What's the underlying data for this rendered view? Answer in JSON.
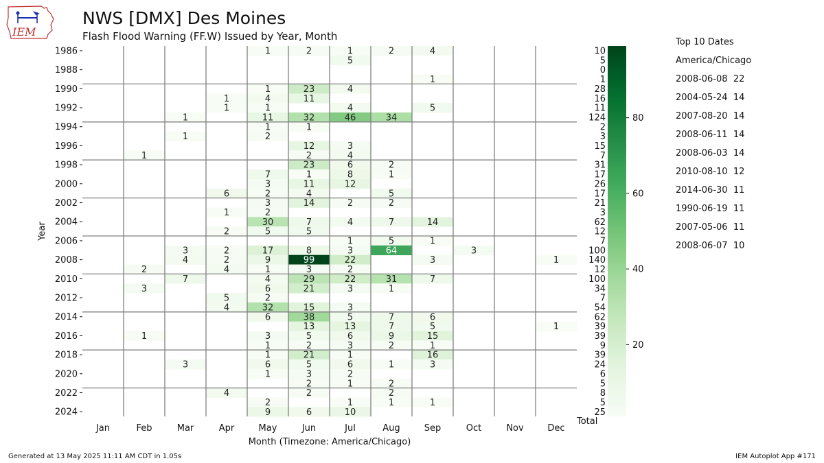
{
  "header": {
    "title": "NWS [DMX] Des Moines",
    "subtitle": "Flash Flood Warning (FF.W) Issued by Year, Month",
    "logo_text": "IEM"
  },
  "chart_data": {
    "type": "heatmap",
    "xlabel": "Month (Timezone: America/Chicago)",
    "ylabel": "Year",
    "x_categories": [
      "Jan",
      "Feb",
      "Mar",
      "Apr",
      "May",
      "Jun",
      "Jul",
      "Aug",
      "Sep",
      "Oct",
      "Nov",
      "Dec"
    ],
    "total_label": "Total",
    "years": [
      1986,
      1987,
      1988,
      1989,
      1990,
      1991,
      1992,
      1993,
      1994,
      1995,
      1996,
      1997,
      1998,
      1999,
      2000,
      2001,
      2002,
      2003,
      2004,
      2005,
      2006,
      2007,
      2008,
      2009,
      2010,
      2011,
      2012,
      2013,
      2014,
      2015,
      2016,
      2017,
      2018,
      2019,
      2020,
      2021,
      2022,
      2023,
      2024
    ],
    "year_tick_labels": [
      1986,
      1988,
      1990,
      1992,
      1994,
      1996,
      1998,
      2000,
      2002,
      2004,
      2006,
      2008,
      2010,
      2012,
      2014,
      2016,
      2018,
      2020,
      2022,
      2024
    ],
    "values": [
      [
        null,
        null,
        null,
        null,
        1,
        2,
        1,
        2,
        4,
        null,
        null,
        null
      ],
      [
        null,
        null,
        null,
        null,
        null,
        null,
        5,
        null,
        null,
        null,
        null,
        null
      ],
      [
        null,
        null,
        null,
        null,
        null,
        null,
        null,
        null,
        null,
        null,
        null,
        null
      ],
      [
        null,
        null,
        null,
        null,
        null,
        null,
        null,
        null,
        1,
        null,
        null,
        null
      ],
      [
        null,
        null,
        null,
        null,
        1,
        23,
        4,
        null,
        null,
        null,
        null,
        null
      ],
      [
        null,
        null,
        null,
        1,
        4,
        11,
        null,
        null,
        null,
        null,
        null,
        null
      ],
      [
        null,
        null,
        null,
        1,
        1,
        null,
        4,
        null,
        5,
        null,
        null,
        null
      ],
      [
        null,
        null,
        1,
        null,
        11,
        32,
        46,
        34,
        null,
        null,
        null,
        null
      ],
      [
        null,
        null,
        null,
        null,
        1,
        1,
        null,
        null,
        null,
        null,
        null,
        null
      ],
      [
        null,
        null,
        1,
        null,
        2,
        null,
        null,
        null,
        null,
        null,
        null,
        null
      ],
      [
        null,
        null,
        null,
        null,
        null,
        12,
        3,
        null,
        null,
        null,
        null,
        null
      ],
      [
        null,
        1,
        null,
        null,
        null,
        2,
        4,
        null,
        null,
        null,
        null,
        null
      ],
      [
        null,
        null,
        null,
        null,
        null,
        23,
        6,
        2,
        null,
        null,
        null,
        null
      ],
      [
        null,
        null,
        null,
        null,
        7,
        1,
        8,
        1,
        null,
        null,
        null,
        null
      ],
      [
        null,
        null,
        null,
        null,
        3,
        11,
        12,
        null,
        null,
        null,
        null,
        null
      ],
      [
        null,
        null,
        null,
        6,
        2,
        4,
        null,
        5,
        null,
        null,
        null,
        null
      ],
      [
        null,
        null,
        null,
        null,
        3,
        14,
        2,
        2,
        null,
        null,
        null,
        null
      ],
      [
        null,
        null,
        null,
        1,
        2,
        null,
        null,
        null,
        null,
        null,
        null,
        null
      ],
      [
        null,
        null,
        null,
        null,
        30,
        7,
        4,
        7,
        14,
        null,
        null,
        null
      ],
      [
        null,
        null,
        null,
        2,
        5,
        5,
        null,
        null,
        null,
        null,
        null,
        null
      ],
      [
        null,
        null,
        null,
        null,
        null,
        null,
        1,
        5,
        1,
        null,
        null,
        null
      ],
      [
        null,
        null,
        3,
        2,
        17,
        8,
        3,
        64,
        null,
        3,
        null,
        null
      ],
      [
        null,
        null,
        4,
        2,
        9,
        99,
        22,
        null,
        3,
        null,
        null,
        1
      ],
      [
        null,
        2,
        null,
        4,
        1,
        3,
        2,
        null,
        null,
        null,
        null,
        null
      ],
      [
        null,
        null,
        7,
        null,
        4,
        29,
        22,
        31,
        7,
        null,
        null,
        null
      ],
      [
        null,
        3,
        null,
        null,
        6,
        21,
        3,
        1,
        null,
        null,
        null,
        null
      ],
      [
        null,
        null,
        null,
        5,
        2,
        null,
        null,
        null,
        null,
        null,
        null,
        null
      ],
      [
        null,
        null,
        null,
        4,
        32,
        15,
        3,
        null,
        null,
        null,
        null,
        null
      ],
      [
        null,
        null,
        null,
        null,
        6,
        38,
        5,
        7,
        6,
        null,
        null,
        null
      ],
      [
        null,
        null,
        null,
        null,
        null,
        13,
        13,
        7,
        5,
        null,
        null,
        1
      ],
      [
        null,
        1,
        null,
        null,
        3,
        5,
        6,
        9,
        15,
        null,
        null,
        null
      ],
      [
        null,
        null,
        null,
        null,
        1,
        2,
        3,
        2,
        1,
        null,
        null,
        null
      ],
      [
        null,
        null,
        null,
        null,
        1,
        21,
        1,
        null,
        16,
        null,
        null,
        null
      ],
      [
        null,
        null,
        3,
        null,
        6,
        5,
        6,
        1,
        3,
        null,
        null,
        null
      ],
      [
        null,
        null,
        null,
        null,
        1,
        3,
        2,
        null,
        null,
        null,
        null,
        null
      ],
      [
        null,
        null,
        null,
        null,
        null,
        2,
        1,
        2,
        null,
        null,
        null,
        null
      ],
      [
        null,
        null,
        null,
        4,
        null,
        2,
        null,
        2,
        null,
        null,
        null,
        null
      ],
      [
        null,
        null,
        null,
        null,
        2,
        null,
        1,
        1,
        1,
        null,
        null,
        null
      ],
      [
        null,
        null,
        null,
        null,
        9,
        6,
        10,
        null,
        null,
        null,
        null,
        null
      ]
    ],
    "totals": [
      10,
      5,
      0,
      1,
      28,
      16,
      11,
      124,
      2,
      3,
      15,
      7,
      31,
      17,
      26,
      17,
      21,
      3,
      62,
      12,
      7,
      100,
      140,
      12,
      100,
      34,
      7,
      54,
      62,
      39,
      39,
      9,
      39,
      24,
      6,
      5,
      8,
      5,
      25
    ],
    "color_scale": {
      "colormap": "Greens",
      "min": 1,
      "max": 99,
      "ticks": [
        20,
        40,
        60,
        80
      ]
    }
  },
  "top10": {
    "title": "Top 10 Dates",
    "timezone": "America/Chicago",
    "entries": [
      "2008-06-08  22",
      "2004-05-24  14",
      "2007-08-20  14",
      "2008-06-11  14",
      "2008-06-03  14",
      "2010-08-10  12",
      "2014-06-30  11",
      "1990-06-19  11",
      "2007-05-06  11",
      "2008-06-07  10"
    ]
  },
  "footer": {
    "generated": "Generated at 13 May 2025 11:11 AM CDT in 1.05s",
    "app": "IEM Autoplot App #171"
  }
}
